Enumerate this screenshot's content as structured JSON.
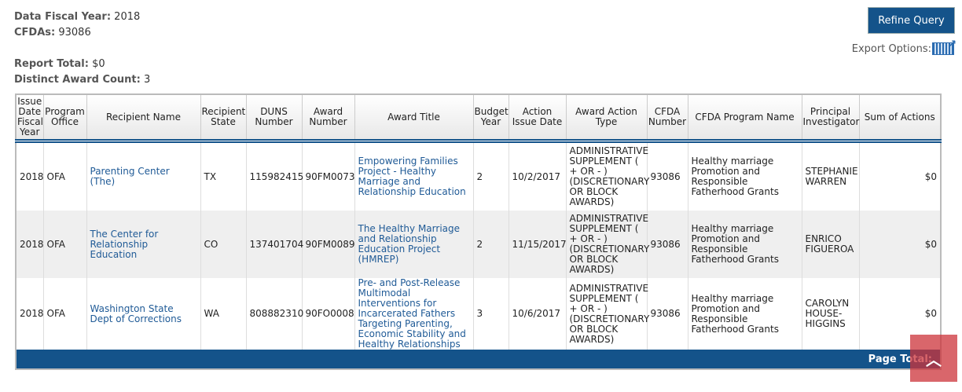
{
  "summary": {
    "fiscal_year_label": "Data Fiscal Year:",
    "fiscal_year": "2018",
    "cfdas_label": "CFDAs:",
    "cfdas": "93086",
    "report_total_label": "Report Total:",
    "report_total": "$0",
    "award_count_label": "Distinct Award Count:",
    "award_count": "3"
  },
  "toolbar": {
    "refine_label": "Refine Query",
    "export_label": "Export Options:",
    "export_icon": "excel-export-icon"
  },
  "table": {
    "headers": [
      "Issue Date Fiscal Year",
      "Program Office",
      "Recipient Name",
      "Recipient State",
      "DUNS Number",
      "Award Number",
      "Award Title",
      "Budget Year",
      "Action Issue Date",
      "Award Action Type",
      "CFDA Number",
      "CFDA Program Name",
      "Principal Investigator",
      "Sum of Actions"
    ],
    "rows": [
      [
        "2018",
        "OFA",
        "Parenting Center (The)",
        "TX",
        "115982415",
        "90FM0073",
        "Empowering Families Project - Healthy Marriage and Relationship Education",
        "2",
        "10/2/2017",
        "ADMINISTRATIVE SUPPLEMENT ( + OR - ) (DISCRETIONARY OR BLOCK AWARDS)",
        "93086",
        "Healthy marriage Promotion and Responsible Fatherhood Grants",
        "STEPHANIE WARREN",
        "$0"
      ],
      [
        "2018",
        "OFA",
        "The Center for Relationship Education",
        "CO",
        "137401704",
        "90FM0089",
        "The Healthy Marriage and Relationship Education Project (HMREP)",
        "2",
        "11/15/2017",
        "ADMINISTRATIVE SUPPLEMENT ( + OR - ) (DISCRETIONARY OR BLOCK AWARDS)",
        "93086",
        "Healthy marriage Promotion and Responsible Fatherhood Grants",
        "ENRICO FIGUEROA",
        "$0"
      ],
      [
        "2018",
        "OFA",
        "Washington State Dept of Corrections",
        "WA",
        "808882310",
        "90FO0008",
        "Pre- and Post-Release Multimodal Interventions for Incarcerated Fathers Targeting Parenting, Economic Stability and Healthy Relationships",
        "3",
        "10/6/2017",
        "ADMINISTRATIVE SUPPLEMENT ( + OR - ) (DISCRETIONARY OR BLOCK AWARDS)",
        "93086",
        "Healthy marriage Promotion and Responsible Fatherhood Grants",
        "CAROLYN HOUSE-HIGGINS",
        "$0"
      ]
    ],
    "footer_label": "Page Total:"
  },
  "scroll_top_icon": "chevron-up-icon"
}
